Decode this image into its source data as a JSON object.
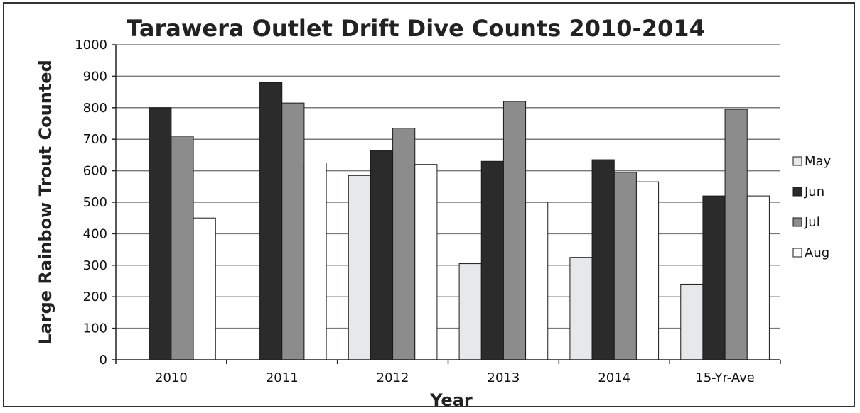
{
  "chart_data": {
    "type": "bar",
    "title": "Tarawera Outlet Drift Dive Counts 2010-2014",
    "xlabel": "Year",
    "ylabel": "Large Rainbow Trout Counted",
    "categories": [
      "2010",
      "2011",
      "2012",
      "2013",
      "2014",
      "15-Yr-Ave"
    ],
    "ylim": [
      0,
      1000
    ],
    "yticks": [
      0,
      100,
      200,
      300,
      400,
      500,
      600,
      700,
      800,
      900,
      1000
    ],
    "grid": true,
    "legend_position": "right",
    "series": [
      {
        "name": "May",
        "color": "#e6e8ea",
        "values": [
          0,
          0,
          585,
          305,
          325,
          240
        ]
      },
      {
        "name": "Jun",
        "color": "#2b2b2b",
        "values": [
          800,
          880,
          665,
          630,
          635,
          520
        ]
      },
      {
        "name": "Jul",
        "color": "#8c8c8c",
        "values": [
          710,
          815,
          735,
          820,
          595,
          795
        ]
      },
      {
        "name": "Aug",
        "color": "#ffffff",
        "values": [
          450,
          625,
          620,
          500,
          565,
          520
        ]
      }
    ]
  }
}
